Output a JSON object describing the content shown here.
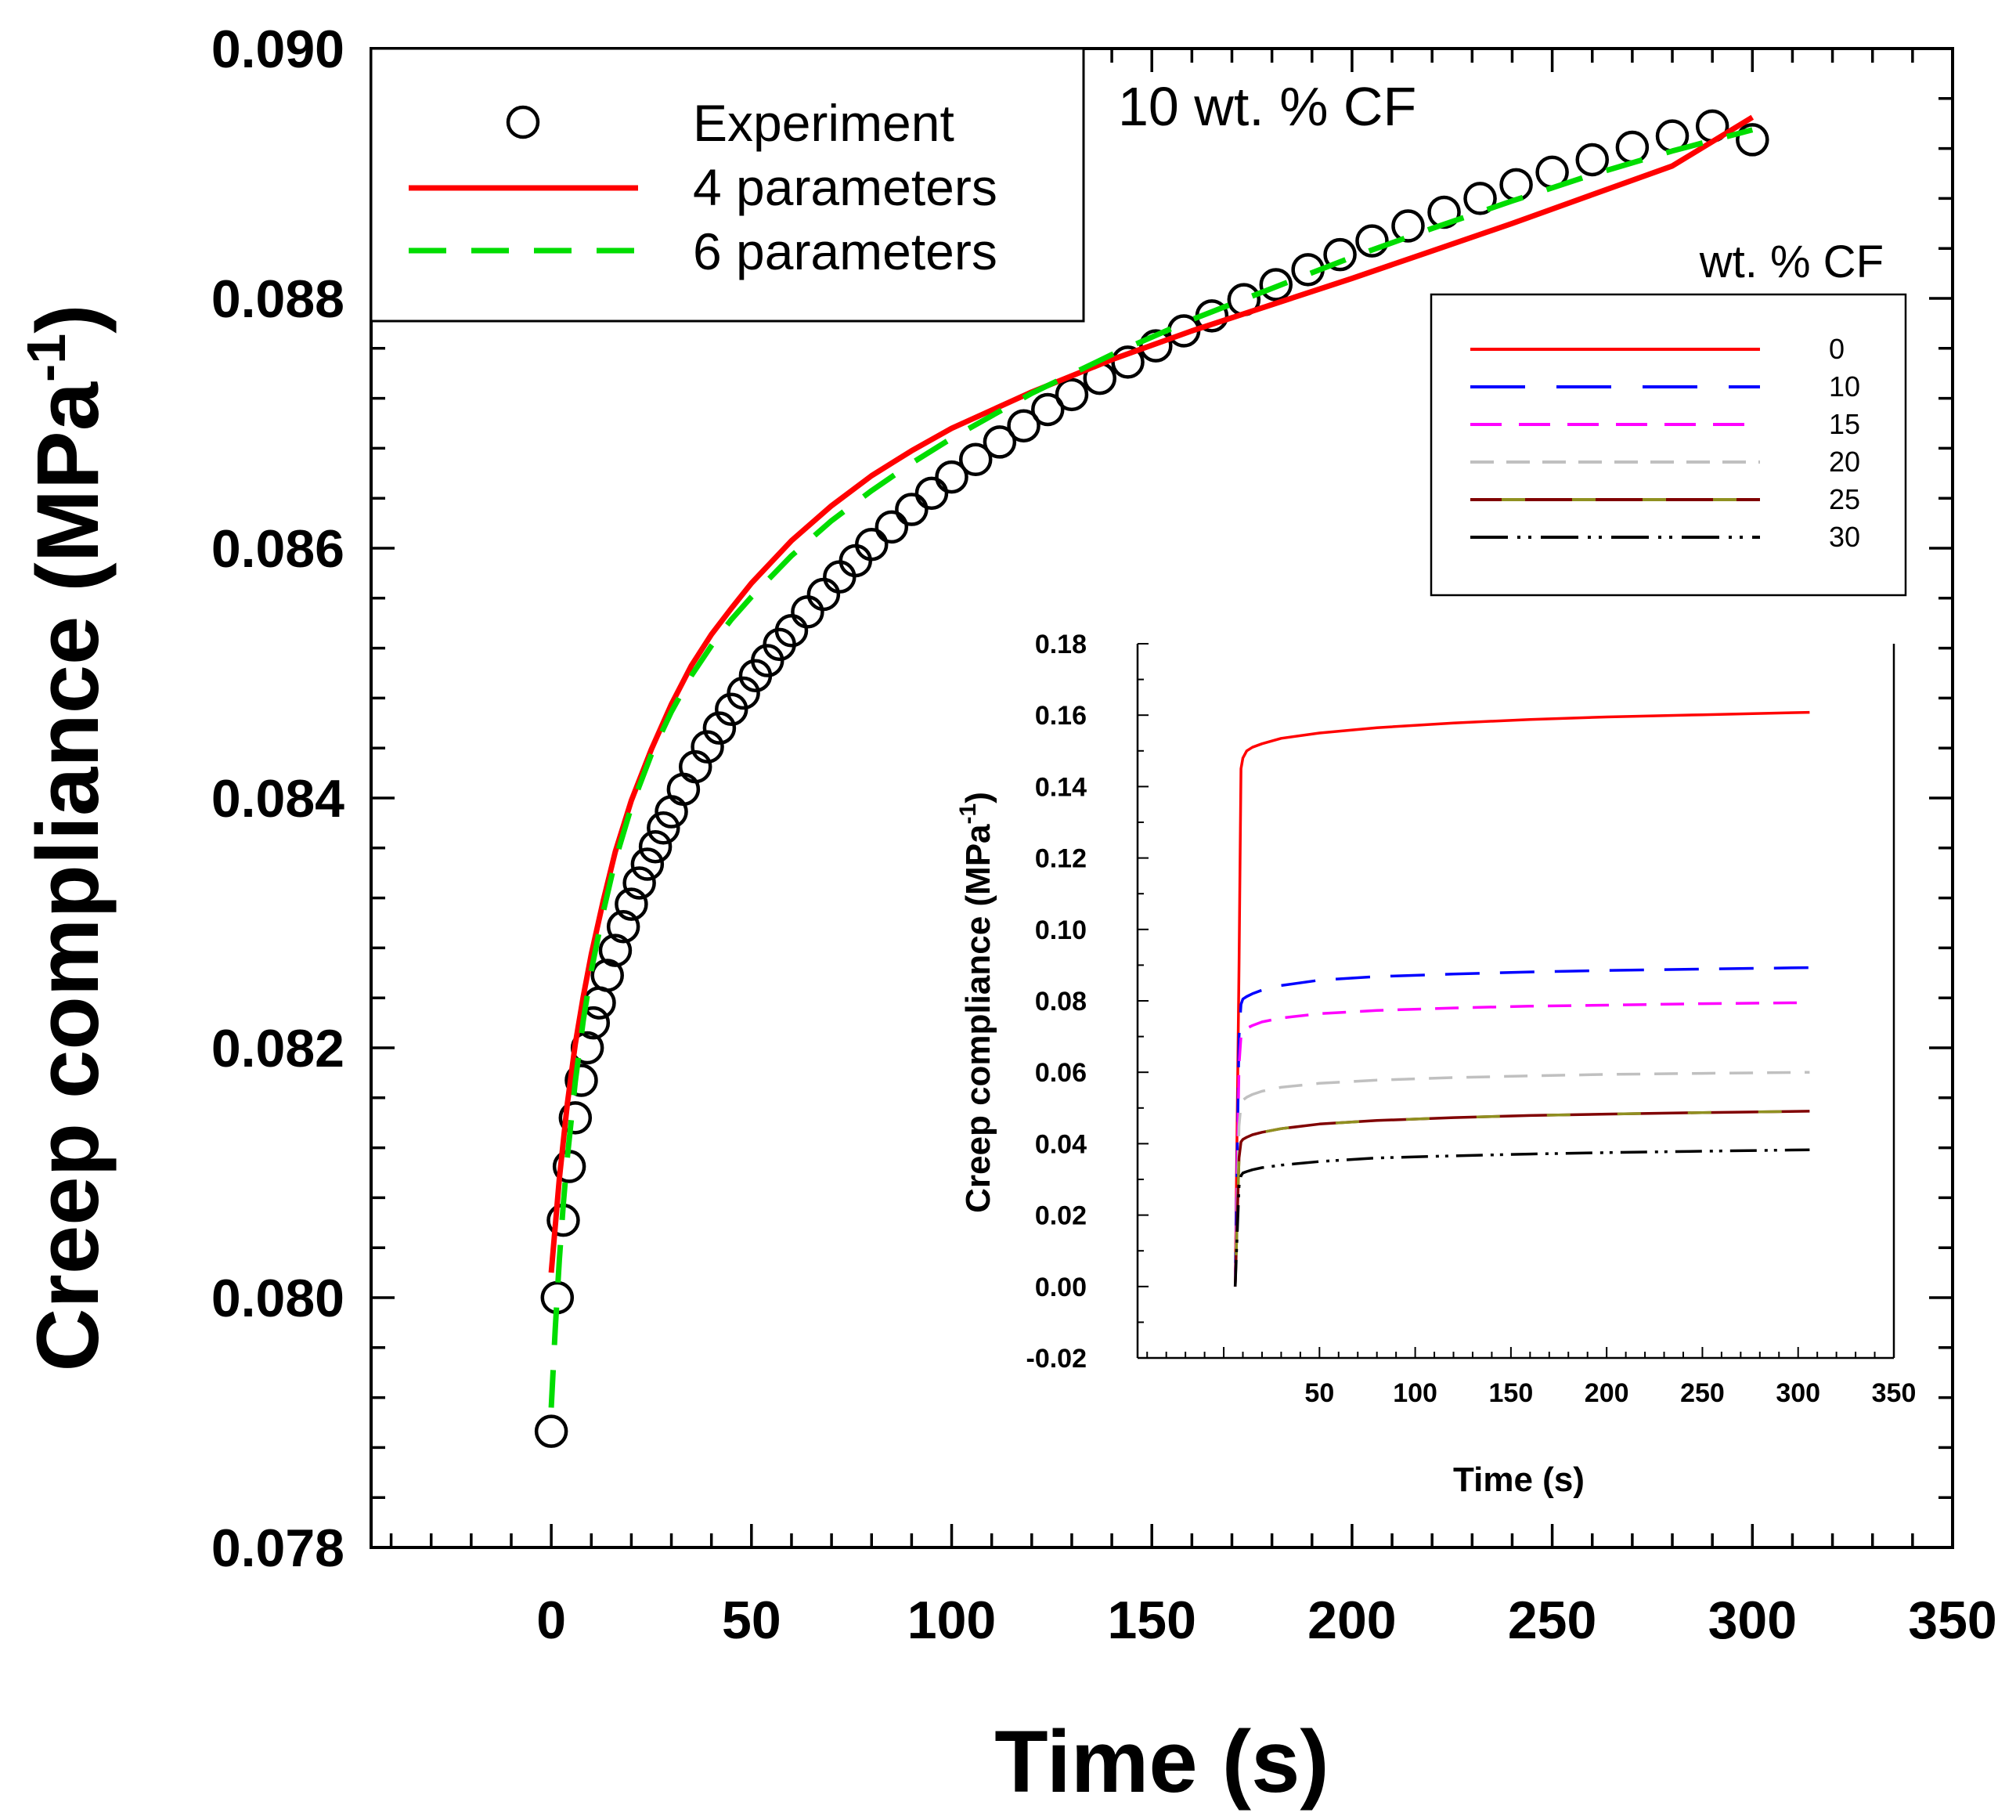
{
  "chart_data": [
    {
      "id": "main",
      "type": "scatter+line",
      "title": "",
      "annotation": "10 wt. % CF",
      "xlabel": "Time (s)",
      "ylabel": "Creep compliance (MPa",
      "ylabel_sup": "-1",
      "ylabel_close": ")",
      "xlim": [
        -45,
        350
      ],
      "ylim": [
        0.078,
        0.09
      ],
      "xticks": [
        0,
        50,
        100,
        150,
        200,
        250,
        300,
        350
      ],
      "xtick_labels": [
        "0",
        "50",
        "100",
        "150",
        "200",
        "250",
        "300",
        "350"
      ],
      "yticks": [
        0.078,
        0.08,
        0.082,
        0.084,
        0.086,
        0.088,
        0.09
      ],
      "ytick_labels": [
        "0.078",
        "0.080",
        "0.082",
        "0.084",
        "0.086",
        "0.088",
        "0.090"
      ],
      "legend": {
        "position": "top-left",
        "entries": [
          {
            "label": "Experiment",
            "style": "circle"
          },
          {
            "label": "4 parameters",
            "style": "solid",
            "color": "#ff0000"
          },
          {
            "label": "6 parameters",
            "style": "dashed",
            "color": "#00dd00"
          }
        ]
      },
      "series": [
        {
          "name": "Experiment",
          "kind": "markers",
          "color": "#000000",
          "x": [
            0,
            1.5,
            3,
            4.5,
            6,
            7.5,
            9,
            10.5,
            12,
            14,
            16,
            18,
            20,
            22,
            24,
            26,
            28,
            30,
            33,
            36,
            39,
            42,
            45,
            48,
            51,
            54,
            57,
            60,
            64,
            68,
            72,
            76,
            80,
            85,
            90,
            95,
            100,
            106,
            112,
            118,
            124,
            130,
            137,
            144,
            151,
            158,
            165,
            173,
            181,
            189,
            197,
            205,
            214,
            223,
            232,
            241,
            250,
            260,
            270,
            280,
            290,
            300
          ],
          "y": [
            0.07893,
            0.08,
            0.08062,
            0.08105,
            0.08144,
            0.08174,
            0.082,
            0.0822,
            0.08236,
            0.08258,
            0.08278,
            0.08297,
            0.08315,
            0.08332,
            0.08347,
            0.08361,
            0.08376,
            0.08389,
            0.08407,
            0.08425,
            0.08441,
            0.08456,
            0.08471,
            0.08484,
            0.08498,
            0.0851,
            0.08523,
            0.08534,
            0.08549,
            0.08563,
            0.08577,
            0.0859,
            0.08603,
            0.08617,
            0.08631,
            0.08644,
            0.08657,
            0.08671,
            0.08685,
            0.08698,
            0.08711,
            0.08723,
            0.08736,
            0.08749,
            0.08762,
            0.08774,
            0.08786,
            0.08799,
            0.08811,
            0.08823,
            0.08835,
            0.08846,
            0.08858,
            0.08869,
            0.0888,
            0.08891,
            0.08901,
            0.08911,
            0.08921,
            0.0893,
            0.08938,
            0.08927
          ]
        },
        {
          "name": "4 parameters",
          "kind": "line",
          "dash": "solid",
          "color": "#ff0000",
          "x": [
            0,
            2,
            4,
            6,
            8,
            10,
            13,
            16,
            20,
            25,
            30,
            35,
            40,
            45,
            50,
            60,
            70,
            80,
            90,
            100,
            120,
            140,
            160,
            180,
            200,
            220,
            240,
            260,
            280,
            300
          ],
          "y": [
            0.0802,
            0.08095,
            0.08155,
            0.08203,
            0.08241,
            0.08275,
            0.08318,
            0.08357,
            0.08398,
            0.08439,
            0.08475,
            0.08506,
            0.08531,
            0.08552,
            0.08572,
            0.08606,
            0.08634,
            0.08658,
            0.08678,
            0.08696,
            0.08725,
            0.08751,
            0.08774,
            0.08795,
            0.08816,
            0.08838,
            0.0886,
            0.08883,
            0.08906,
            0.08945
          ]
        },
        {
          "name": "6 parameters",
          "kind": "line",
          "dash": "dashed",
          "color": "#00dd00",
          "x": [
            0,
            1,
            2,
            3,
            4,
            6,
            8,
            10,
            13,
            16,
            20,
            25,
            30,
            35,
            40,
            45,
            50,
            60,
            70,
            80,
            90,
            100,
            120,
            140,
            160,
            180,
            200,
            220,
            240,
            260,
            280,
            300
          ],
          "y": [
            0.07912,
            0.07975,
            0.0803,
            0.08075,
            0.08112,
            0.08173,
            0.08222,
            0.08262,
            0.08309,
            0.0835,
            0.08393,
            0.08435,
            0.08469,
            0.08498,
            0.08522,
            0.08543,
            0.08561,
            0.08594,
            0.08622,
            0.08646,
            0.08668,
            0.08688,
            0.08724,
            0.08755,
            0.08783,
            0.08808,
            0.08833,
            0.08856,
            0.08878,
            0.08899,
            0.08918,
            0.08935
          ]
        }
      ]
    },
    {
      "id": "inset",
      "type": "line",
      "title": "",
      "xlabel": "Time (s)",
      "ylabel": "Creep compliance (MPa",
      "ylabel_sup": "-1",
      "ylabel_close": ")",
      "xlim": [
        -45,
        350
      ],
      "ylim": [
        -0.02,
        0.18
      ],
      "xticks": [
        50,
        100,
        150,
        200,
        250,
        300,
        350
      ],
      "xtick_labels": [
        "50",
        "100",
        "150",
        "200",
        "250",
        "300",
        "350"
      ],
      "yticks": [
        -0.02,
        0.0,
        0.02,
        0.04,
        0.06,
        0.08,
        0.1,
        0.12,
        0.14,
        0.16,
        0.18
      ],
      "ytick_labels": [
        "-0.02",
        "0.00",
        "0.02",
        "0.04",
        "0.06",
        "0.08",
        "0.10",
        "0.12",
        "0.14",
        "0.16",
        "0.18"
      ],
      "legend": {
        "title": "wt. % CF",
        "position": "top-right",
        "entries": [
          {
            "label": "0",
            "color": "#ff0000",
            "dash": "solid"
          },
          {
            "label": "10",
            "color": "#0000ff",
            "dash": "long-dash"
          },
          {
            "label": "15",
            "color": "#ff00ff",
            "dash": "dash"
          },
          {
            "label": "20",
            "color": "#c0c0c0",
            "dash": "dash"
          },
          {
            "label": "25",
            "color": "#800000",
            "dash": "dash-alt"
          },
          {
            "label": "30",
            "color": "#000000",
            "dash": "dash-dot-dot"
          }
        ]
      },
      "series": [
        {
          "name": "0",
          "color": "#ff0000",
          "dash": "solid",
          "x": [
            6,
            8,
            9,
            10,
            12,
            15,
            20,
            30,
            50,
            80,
            120,
            160,
            200,
            250,
            306
          ],
          "y": [
            0.0,
            0.09,
            0.145,
            0.148,
            0.15,
            0.151,
            0.152,
            0.1535,
            0.155,
            0.1565,
            0.1578,
            0.1588,
            0.1595,
            0.1601,
            0.1608
          ]
        },
        {
          "name": "10",
          "color": "#0000ff",
          "dash": "long-dash",
          "x": [
            6,
            8,
            9,
            10,
            12,
            15,
            20,
            30,
            50,
            80,
            120,
            160,
            200,
            250,
            306
          ],
          "y": [
            0.0,
            0.07,
            0.079,
            0.0805,
            0.0812,
            0.082,
            0.083,
            0.0843,
            0.0858,
            0.0868,
            0.0875,
            0.0881,
            0.0885,
            0.0889,
            0.0893
          ]
        },
        {
          "name": "15",
          "color": "#ff00ff",
          "dash": "dash",
          "x": [
            6,
            8,
            9,
            10,
            12,
            15,
            20,
            30,
            50,
            80,
            120,
            160,
            200,
            250,
            306
          ],
          "y": [
            0.0,
            0.062,
            0.07,
            0.0715,
            0.0723,
            0.0731,
            0.0741,
            0.0752,
            0.0764,
            0.0773,
            0.078,
            0.0785,
            0.0788,
            0.0792,
            0.0795
          ]
        },
        {
          "name": "20",
          "color": "#c0c0c0",
          "dash": "dash",
          "x": [
            6,
            8,
            9,
            10,
            12,
            15,
            20,
            30,
            50,
            80,
            120,
            160,
            200,
            250,
            306
          ],
          "y": [
            0.0,
            0.045,
            0.051,
            0.0522,
            0.053,
            0.0538,
            0.0547,
            0.0558,
            0.0569,
            0.0578,
            0.0585,
            0.059,
            0.0594,
            0.0597,
            0.06
          ]
        },
        {
          "name": "25",
          "color": "#800000",
          "dash": "dash-alt",
          "x": [
            6,
            8,
            9,
            10,
            12,
            15,
            20,
            30,
            50,
            80,
            120,
            160,
            200,
            250,
            306
          ],
          "y": [
            0.0,
            0.036,
            0.0405,
            0.0412,
            0.0418,
            0.0425,
            0.0432,
            0.0442,
            0.0455,
            0.0465,
            0.0473,
            0.0479,
            0.0483,
            0.0487,
            0.0491
          ]
        },
        {
          "name": "30",
          "color": "#000000",
          "dash": "dash-dot-dot",
          "x": [
            6,
            8,
            9,
            10,
            12,
            15,
            20,
            30,
            50,
            80,
            120,
            160,
            200,
            250,
            306
          ],
          "y": [
            0.0,
            0.028,
            0.031,
            0.0318,
            0.0322,
            0.0327,
            0.0333,
            0.034,
            0.035,
            0.036,
            0.0366,
            0.0371,
            0.0375,
            0.0379,
            0.0383
          ]
        }
      ]
    }
  ]
}
